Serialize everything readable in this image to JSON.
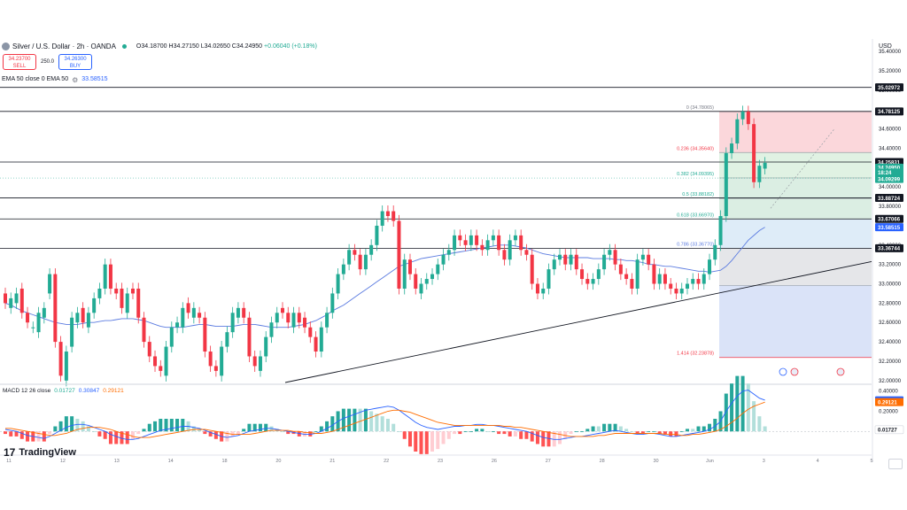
{
  "header": {
    "title": "Silver / U.S. Dollar · 2h · OANDA",
    "ohlc_o": "O34.18700",
    "ohlc_h": "H34.27150",
    "ohlc_l": "L34.02650",
    "ohlc_c": "C34.24950",
    "ohlc_change": "+0.06040 (+0.18%)",
    "sell_price": "34.23700",
    "sell_label": "SELL",
    "spread": "250.0",
    "buy_price": "34.26300",
    "buy_label": "BUY",
    "ema_label": "EMA 50 close 0 EMA 50",
    "ema_value": "33.58515",
    "macd_label": "MACD 12 26 close",
    "macd_hist": "0.01727",
    "macd_line": "0.30847",
    "macd_signal": "0.29121",
    "currency": "USD",
    "logo_text": "TradingView"
  },
  "colors": {
    "up": "#22ab94",
    "down": "#f23645",
    "ema": "#5b7be0",
    "macd": "#2962ff",
    "signal": "#ff6d00"
  },
  "chart_data": [
    {
      "type": "candlestick",
      "title": "Silver / U.S. Dollar · 2h · OANDA",
      "ylim": [
        31.98,
        35.53
      ],
      "y_ticks": [
        "35.40000",
        "35.20000",
        "35.00000",
        "34.80000",
        "34.60000",
        "34.40000",
        "34.20000",
        "34.00000",
        "33.80000",
        "33.60000",
        "33.40000",
        "33.20000",
        "33.00000",
        "32.80000",
        "32.60000",
        "32.40000",
        "32.20000",
        "32.00000"
      ],
      "closes": [
        32.8,
        32.85,
        32.9,
        32.7,
        32.6,
        32.55,
        32.7,
        32.75,
        33.1,
        32.4,
        32.05,
        32.3,
        32.65,
        32.7,
        32.6,
        32.7,
        32.85,
        32.95,
        33.2,
        32.95,
        32.9,
        32.75,
        32.9,
        32.9,
        32.65,
        32.4,
        32.25,
        32.15,
        32.1,
        32.35,
        32.55,
        32.6,
        32.75,
        32.7,
        32.75,
        32.65,
        32.3,
        32.15,
        32.1,
        32.35,
        32.5,
        32.7,
        32.75,
        32.65,
        32.25,
        32.15,
        32.25,
        32.45,
        32.6,
        32.7,
        32.7,
        32.6,
        32.7,
        32.6,
        32.55,
        32.45,
        32.3,
        32.55,
        32.7,
        32.9,
        33.1,
        33.2,
        33.35,
        33.3,
        33.15,
        33.3,
        33.4,
        33.6,
        33.75,
        33.7,
        33.65,
        32.95,
        33.25,
        33.1,
        32.95,
        33.0,
        33.05,
        33.1,
        33.2,
        33.3,
        33.35,
        33.5,
        33.45,
        33.4,
        33.5,
        33.4,
        33.35,
        33.45,
        33.5,
        33.35,
        33.25,
        33.45,
        33.5,
        33.35,
        33.3,
        33.0,
        32.9,
        32.95,
        33.15,
        33.25,
        33.3,
        33.2,
        33.3,
        33.15,
        33.05,
        33.0,
        33.05,
        33.15,
        33.3,
        33.35,
        33.2,
        33.1,
        33.05,
        32.95,
        33.25,
        33.3,
        33.2,
        33.0,
        33.1,
        33.0,
        32.95,
        32.9,
        32.95,
        33.0,
        33.05,
        33.0,
        33.1,
        33.25,
        33.4,
        33.7,
        34.35,
        34.45,
        34.7,
        34.78,
        34.65,
        34.05,
        34.22,
        34.25
      ],
      "opens": [
        32.9,
        32.75,
        32.8,
        32.95,
        32.7,
        32.55,
        32.5,
        32.65,
        32.9,
        33.1,
        32.4,
        32.0,
        32.35,
        32.6,
        32.75,
        32.55,
        32.7,
        32.85,
        32.95,
        33.2,
        32.95,
        32.95,
        32.7,
        32.95,
        32.95,
        32.65,
        32.4,
        32.25,
        32.15,
        32.05,
        32.35,
        32.55,
        32.55,
        32.8,
        32.65,
        32.7,
        32.65,
        32.3,
        32.15,
        32.05,
        32.35,
        32.5,
        32.65,
        32.75,
        32.65,
        32.25,
        32.1,
        32.25,
        32.45,
        32.6,
        32.75,
        32.7,
        32.55,
        32.7,
        32.65,
        32.55,
        32.45,
        32.3,
        32.55,
        32.7,
        32.9,
        33.1,
        33.2,
        33.35,
        33.3,
        33.15,
        33.3,
        33.4,
        33.6,
        33.75,
        33.75,
        33.65,
        32.95,
        33.25,
        33.1,
        32.9,
        33.0,
        33.05,
        33.1,
        33.2,
        33.3,
        33.35,
        33.5,
        33.45,
        33.4,
        33.5,
        33.4,
        33.35,
        33.45,
        33.5,
        33.35,
        33.25,
        33.45,
        33.5,
        33.35,
        33.3,
        33.0,
        32.9,
        32.95,
        33.15,
        33.25,
        33.3,
        33.2,
        33.3,
        33.15,
        33.05,
        33.0,
        33.05,
        33.15,
        33.3,
        33.35,
        33.2,
        33.1,
        33.05,
        32.95,
        33.25,
        33.3,
        33.2,
        33.0,
        33.1,
        33.0,
        32.95,
        32.9,
        32.95,
        33.0,
        33.05,
        33.0,
        33.1,
        33.25,
        33.4,
        33.7,
        34.35,
        34.45,
        34.7,
        34.78,
        34.65,
        34.05,
        34.19
      ],
      "ema50": [
        32.8,
        32.78,
        32.75,
        32.72,
        32.7,
        32.68,
        32.66,
        32.64,
        32.62,
        32.6,
        32.59,
        32.58,
        32.58,
        32.58,
        32.59,
        32.6,
        32.6,
        32.61,
        32.62,
        32.62,
        32.63,
        32.64,
        32.64,
        32.64,
        32.63,
        32.62,
        32.6,
        32.58,
        32.56,
        32.55,
        32.55,
        32.55,
        32.55,
        32.56,
        32.57,
        32.58,
        32.58,
        32.57,
        32.56,
        32.56,
        32.56,
        32.56,
        32.57,
        32.58,
        32.58,
        32.58,
        32.57,
        32.56,
        32.55,
        32.55,
        32.55,
        32.55,
        32.56,
        32.57,
        32.58,
        32.6,
        32.62,
        32.65,
        32.68,
        32.72,
        32.75,
        32.78,
        32.82,
        32.86,
        32.9,
        32.94,
        32.98,
        33.02,
        33.06,
        33.1,
        33.14,
        33.18,
        33.2,
        33.22,
        33.24,
        33.26,
        33.27,
        33.28,
        33.29,
        33.3,
        33.31,
        33.32,
        33.33,
        33.34,
        33.35,
        33.36,
        33.37,
        33.38,
        33.39,
        33.4,
        33.4,
        33.4,
        33.39,
        33.38,
        33.37,
        33.35,
        33.33,
        33.31,
        33.3,
        33.29,
        33.28,
        33.27,
        33.27,
        33.27,
        33.27,
        33.27,
        33.26,
        33.26,
        33.26,
        33.26,
        33.25,
        33.25,
        33.24,
        33.24,
        33.23,
        33.22,
        33.2,
        33.2,
        33.19,
        33.18,
        33.18,
        33.17,
        33.16,
        33.15,
        33.14,
        33.13,
        33.13,
        33.12,
        33.13,
        33.14,
        33.18,
        33.24,
        33.31,
        33.38,
        33.45,
        33.5,
        33.55,
        33.58515
      ]
    },
    {
      "type": "fibonacci",
      "levels": [
        {
          "ratio": "0",
          "price": 34.78065,
          "label": "0 (34.78065)"
        },
        {
          "ratio": "0.236",
          "price": 34.3564,
          "label": "0.236 (34.35640)"
        },
        {
          "ratio": "0.382",
          "price": 34.09395,
          "label": "0.382 (34.09395)"
        },
        {
          "ratio": "0.5",
          "price": 33.88182,
          "label": "0.5 (33.88182)"
        },
        {
          "ratio": "0.618",
          "price": 33.6697,
          "label": "0.618 (33.66970)"
        },
        {
          "ratio": "0.786",
          "price": 33.3677,
          "label": "0.786 (33.36770)"
        },
        {
          "ratio": "1",
          "price": 32.9834,
          "label": ""
        },
        {
          "ratio": "1.414",
          "price": 32.23878,
          "label": "1.414 (32.23878)"
        }
      ]
    },
    {
      "type": "horizontal-levels",
      "values": [
        35.02972,
        34.78125,
        34.25831,
        33.88724,
        33.67066,
        33.36744
      ]
    },
    {
      "type": "price-labels",
      "labels": [
        {
          "text": "35.02972",
          "price": 35.02972,
          "style": "dark"
        },
        {
          "text": "34.78125",
          "price": 34.78125,
          "style": "dark"
        },
        {
          "text": "34.25831",
          "price": 34.25831,
          "style": "dark"
        },
        {
          "text": "34.24950",
          "price": 34.1995,
          "style": "green"
        },
        {
          "text": "18:24",
          "price": 34.1495,
          "style": "green"
        },
        {
          "text": "34.09299",
          "price": 34.08299,
          "style": "green"
        },
        {
          "text": "33.88724",
          "price": 33.88724,
          "style": "dark"
        },
        {
          "text": "33.67066",
          "price": 33.67066,
          "style": "dark"
        },
        {
          "text": "33.58515",
          "price": 33.58515,
          "style": "blue"
        },
        {
          "text": "33.36744",
          "price": 33.36744,
          "style": "dark"
        }
      ]
    },
    {
      "type": "macd",
      "y_ticks": [
        "0.40000",
        "0.20000"
      ],
      "ylim": [
        -0.2,
        0.45
      ],
      "labels": [
        {
          "text": "0.30847",
          "value": 0.30847,
          "style": "blue"
        },
        {
          "text": "0.29121",
          "value": 0.29121,
          "style": "orange"
        },
        {
          "text": "0.01727",
          "value": 0.01727,
          "style": "plain"
        }
      ],
      "macd": [
        0.02,
        0.01,
        0.0,
        -0.02,
        -0.04,
        -0.05,
        -0.06,
        -0.07,
        -0.05,
        -0.02,
        0.01,
        0.04,
        0.06,
        0.07,
        0.07,
        0.06,
        0.04,
        0.02,
        0.0,
        -0.03,
        -0.05,
        -0.07,
        -0.08,
        -0.08,
        -0.07,
        -0.05,
        -0.03,
        -0.01,
        0.01,
        0.02,
        0.03,
        0.04,
        0.05,
        0.05,
        0.04,
        0.03,
        0.01,
        -0.01,
        -0.03,
        -0.05,
        -0.06,
        -0.05,
        -0.04,
        -0.02,
        0.0,
        0.01,
        0.02,
        0.03,
        0.03,
        0.02,
        0.01,
        0.0,
        -0.01,
        -0.02,
        -0.03,
        -0.03,
        -0.02,
        0.0,
        0.03,
        0.06,
        0.1,
        0.13,
        0.15,
        0.17,
        0.19,
        0.21,
        0.22,
        0.23,
        0.24,
        0.25,
        0.24,
        0.21,
        0.17,
        0.13,
        0.09,
        0.06,
        0.04,
        0.03,
        0.02,
        0.03,
        0.04,
        0.05,
        0.05,
        0.06,
        0.06,
        0.07,
        0.07,
        0.06,
        0.06,
        0.05,
        0.04,
        0.03,
        0.02,
        0.01,
        0.0,
        -0.02,
        -0.04,
        -0.06,
        -0.07,
        -0.08,
        -0.08,
        -0.07,
        -0.06,
        -0.05,
        -0.05,
        -0.04,
        -0.03,
        -0.02,
        -0.01,
        0.0,
        0.01,
        0.0,
        -0.01,
        -0.02,
        -0.03,
        -0.03,
        -0.02,
        -0.02,
        -0.03,
        -0.04,
        -0.05,
        -0.05,
        -0.04,
        -0.03,
        -0.02,
        -0.01,
        0.0,
        0.02,
        0.05,
        0.1,
        0.2,
        0.28,
        0.35,
        0.4,
        0.41,
        0.37,
        0.33,
        0.31
      ],
      "signal": [
        0.03,
        0.03,
        0.02,
        0.01,
        0.0,
        -0.01,
        -0.02,
        -0.03,
        -0.04,
        -0.04,
        -0.03,
        -0.02,
        0.0,
        0.02,
        0.03,
        0.04,
        0.04,
        0.04,
        0.03,
        0.02,
        0.0,
        -0.02,
        -0.03,
        -0.05,
        -0.06,
        -0.06,
        -0.06,
        -0.05,
        -0.04,
        -0.03,
        -0.02,
        -0.01,
        0.0,
        0.01,
        0.02,
        0.02,
        0.02,
        0.01,
        0.0,
        -0.01,
        -0.02,
        -0.03,
        -0.03,
        -0.03,
        -0.03,
        -0.02,
        -0.01,
        0.0,
        0.01,
        0.01,
        0.01,
        0.01,
        0.0,
        0.0,
        -0.01,
        -0.01,
        -0.02,
        -0.02,
        -0.01,
        0.0,
        0.02,
        0.04,
        0.06,
        0.08,
        0.1,
        0.12,
        0.14,
        0.16,
        0.18,
        0.2,
        0.21,
        0.21,
        0.2,
        0.19,
        0.17,
        0.15,
        0.13,
        0.11,
        0.09,
        0.08,
        0.07,
        0.06,
        0.06,
        0.06,
        0.06,
        0.06,
        0.06,
        0.06,
        0.06,
        0.06,
        0.05,
        0.05,
        0.04,
        0.04,
        0.03,
        0.02,
        0.01,
        0.0,
        -0.01,
        -0.02,
        -0.03,
        -0.04,
        -0.05,
        -0.05,
        -0.05,
        -0.05,
        -0.05,
        -0.04,
        -0.04,
        -0.03,
        -0.02,
        -0.02,
        -0.02,
        -0.02,
        -0.02,
        -0.02,
        -0.02,
        -0.02,
        -0.02,
        -0.03,
        -0.03,
        -0.03,
        -0.04,
        -0.04,
        -0.03,
        -0.03,
        -0.02,
        -0.01,
        0.0,
        0.02,
        0.05,
        0.09,
        0.13,
        0.18,
        0.22,
        0.25,
        0.27,
        0.29
      ]
    },
    {
      "type": "x-axis",
      "ticks": [
        "11",
        "12",
        "13",
        "14",
        "18",
        "20",
        "21",
        "22",
        "23",
        "26",
        "27",
        "28",
        "30",
        "Jun",
        "3",
        "4",
        "5"
      ]
    }
  ]
}
